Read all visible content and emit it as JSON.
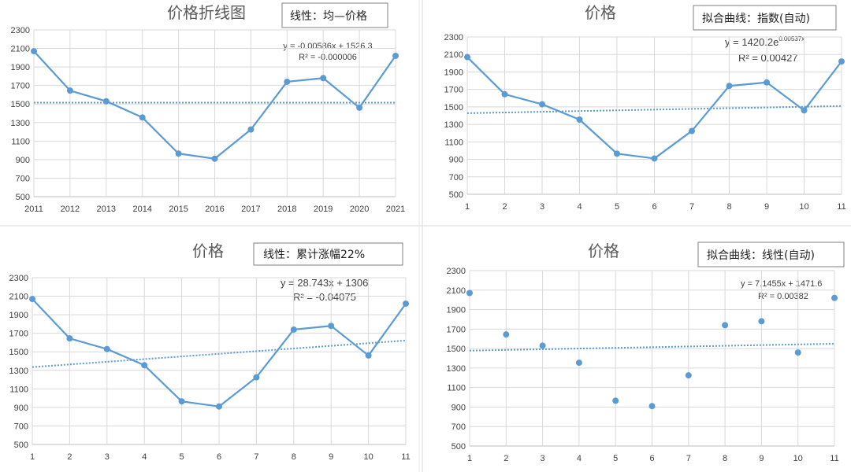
{
  "colors": {
    "series": "#5B9BD5",
    "grid": "#d9d9d9",
    "axis": "#bfbfbf",
    "text": "#404040"
  },
  "chart_data": [
    {
      "type": "line",
      "title": "价格折线图",
      "note": "线性：均—价格",
      "equation": "y = -0.00586x + 1526.3",
      "r2": "R² = -0.000006",
      "categories": [
        "2011",
        "2012",
        "2013",
        "2014",
        "2015",
        "2016",
        "2017",
        "2018",
        "2019",
        "2020",
        "2021"
      ],
      "values": [
        2070,
        1645,
        1530,
        1355,
        965,
        910,
        1225,
        1740,
        1780,
        1460,
        2020
      ],
      "trend": [
        1515,
        1515
      ],
      "ylim": [
        500,
        2300
      ],
      "yticks": [
        500,
        700,
        900,
        1100,
        1300,
        1500,
        1700,
        1900,
        2100,
        2300
      ],
      "grid": true
    },
    {
      "type": "line",
      "title": "价格",
      "note": "拟合曲线：指数(自动)",
      "equation_base": "y = 1420.2e",
      "equation_exp": "0.00537x",
      "r2": "R² = 0.00427",
      "categories": [
        "1",
        "2",
        "3",
        "4",
        "5",
        "6",
        "7",
        "8",
        "9",
        "10",
        "11"
      ],
      "values": [
        2070,
        1645,
        1530,
        1355,
        965,
        910,
        1225,
        1740,
        1780,
        1460,
        2020
      ],
      "trend": [
        1428,
        1510
      ],
      "ylim": [
        500,
        2300
      ],
      "yticks": [
        500,
        700,
        900,
        1100,
        1300,
        1500,
        1700,
        1900,
        2100,
        2300
      ],
      "grid": true
    },
    {
      "type": "line",
      "title": "价格",
      "note": "线性：累计涨幅22%",
      "equation": "y = 28.743x + 1306",
      "r2": "R² = -0.04075",
      "categories": [
        "1",
        "2",
        "3",
        "4",
        "5",
        "6",
        "7",
        "8",
        "9",
        "10",
        "11"
      ],
      "values": [
        2070,
        1645,
        1530,
        1355,
        965,
        910,
        1225,
        1740,
        1780,
        1460,
        2020
      ],
      "trend": [
        1335,
        1622
      ],
      "ylim": [
        500,
        2300
      ],
      "yticks": [
        500,
        700,
        900,
        1100,
        1300,
        1500,
        1700,
        1900,
        2100,
        2300
      ],
      "grid": true
    },
    {
      "type": "scatter",
      "title": "价格",
      "note": "拟合曲线：线性(自动)",
      "equation": "y = 7.1455x + 1471.6",
      "r2": "R² = 0.00382",
      "categories": [
        "1",
        "2",
        "3",
        "4",
        "5",
        "6",
        "7",
        "8",
        "9",
        "10",
        "11"
      ],
      "values": [
        2070,
        1645,
        1530,
        1355,
        965,
        910,
        1225,
        1740,
        1780,
        1460,
        2020
      ],
      "trend": [
        1479,
        1550
      ],
      "ylim": [
        500,
        2300
      ],
      "yticks": [
        500,
        700,
        900,
        1100,
        1300,
        1500,
        1700,
        1900,
        2100,
        2300
      ],
      "grid": true
    }
  ]
}
